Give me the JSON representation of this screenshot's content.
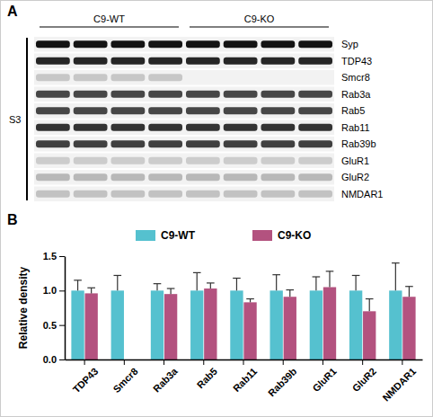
{
  "panels": [
    "A",
    "B"
  ],
  "blot": {
    "groups": [
      "C9-WT",
      "C9-KO"
    ],
    "fraction": "S3",
    "proteins": [
      "Syp",
      "TDP43",
      "Smcr8",
      "Rab3a",
      "Rab5",
      "Rab11",
      "Rab39b",
      "GluR1",
      "GluR2",
      "NMDAR1"
    ]
  },
  "chart_data": {
    "type": "bar",
    "y_label": "Relative density",
    "legend": "top",
    "data_labels": false,
    "categories": [
      "TDP43",
      "Smcr8",
      "Rab3a",
      "Rab5",
      "Rab11",
      "Rab39b",
      "GluR1",
      "GluR2",
      "NMDAR1"
    ],
    "series": [
      {
        "name": "C9-WT",
        "color": "#55c1cf",
        "values": [
          1.0,
          1.0,
          1.0,
          1.0,
          1.0,
          1.0,
          1.0,
          1.0,
          1.0
        ],
        "errors": [
          0.15,
          0.22,
          0.1,
          0.26,
          0.18,
          0.23,
          0.2,
          0.22,
          0.4
        ]
      },
      {
        "name": "C9-KO",
        "color": "#b3527f",
        "values": [
          0.96,
          null,
          0.95,
          1.03,
          0.83,
          0.91,
          1.05,
          0.7,
          0.91
        ],
        "errors": [
          0.08,
          null,
          0.08,
          0.08,
          0.05,
          0.1,
          0.23,
          0.18,
          0.15
        ]
      }
    ],
    "ylim": [
      0,
      1.5
    ],
    "yticks": [
      {
        "value": 0,
        "label": "0.0"
      },
      {
        "value": 0.5,
        "label": "0.5"
      },
      {
        "value": 1.0,
        "label": "1.0"
      },
      {
        "value": 1.5,
        "label": "1.5"
      }
    ],
    "grid": false
  }
}
